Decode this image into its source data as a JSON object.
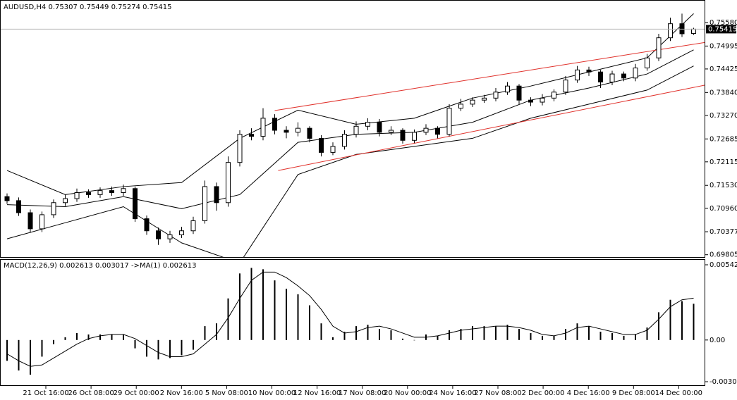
{
  "chart_data": [
    {
      "type": "candlestick",
      "title": "AUDUSD,H4",
      "ohlc": [
        [
          0.7125,
          0.7133,
          0.7107,
          0.7115
        ],
        [
          0.7115,
          0.7123,
          0.7077,
          0.7085
        ],
        [
          0.7085,
          0.7093,
          0.7035,
          0.7045
        ],
        [
          0.7045,
          0.7088,
          0.7037,
          0.708
        ],
        [
          0.708,
          0.7118,
          0.7072,
          0.711
        ],
        [
          0.711,
          0.713,
          0.7102,
          0.712
        ],
        [
          0.712,
          0.7145,
          0.7112,
          0.7135
        ],
        [
          0.7135,
          0.7143,
          0.7122,
          0.713
        ],
        [
          0.713,
          0.7148,
          0.7122,
          0.714
        ],
        [
          0.714,
          0.715,
          0.7127,
          0.7135
        ],
        [
          0.7135,
          0.7155,
          0.7127,
          0.7145
        ],
        [
          0.7145,
          0.715,
          0.7062,
          0.707
        ],
        [
          0.707,
          0.7078,
          0.703,
          0.704
        ],
        [
          0.704,
          0.7048,
          0.7005,
          0.702
        ],
        [
          0.702,
          0.704,
          0.701,
          0.703
        ],
        [
          0.703,
          0.705,
          0.7022,
          0.704
        ],
        [
          0.704,
          0.7075,
          0.7032,
          0.7065
        ],
        [
          0.7065,
          0.7165,
          0.7058,
          0.715
        ],
        [
          0.715,
          0.716,
          0.709,
          0.711
        ],
        [
          0.711,
          0.7225,
          0.71,
          0.721
        ],
        [
          0.721,
          0.729,
          0.72,
          0.728
        ],
        [
          0.728,
          0.7295,
          0.7265,
          0.7275
        ],
        [
          0.7275,
          0.7345,
          0.7265,
          0.732
        ],
        [
          0.732,
          0.733,
          0.728,
          0.729
        ],
        [
          0.729,
          0.73,
          0.727,
          0.7285
        ],
        [
          0.7285,
          0.731,
          0.7275,
          0.7295
        ],
        [
          0.7295,
          0.73,
          0.726,
          0.727
        ],
        [
          0.727,
          0.7278,
          0.7225,
          0.7235
        ],
        [
          0.7235,
          0.726,
          0.7228,
          0.725
        ],
        [
          0.725,
          0.729,
          0.7242,
          0.728
        ],
        [
          0.728,
          0.7312,
          0.7272,
          0.73
        ],
        [
          0.73,
          0.732,
          0.729,
          0.731
        ],
        [
          0.731,
          0.7318,
          0.7275,
          0.7285
        ],
        [
          0.7285,
          0.73,
          0.7278,
          0.729
        ],
        [
          0.729,
          0.7295,
          0.7257,
          0.7265
        ],
        [
          0.7265,
          0.7292,
          0.7258,
          0.7285
        ],
        [
          0.7285,
          0.7305,
          0.7278,
          0.7295
        ],
        [
          0.7295,
          0.73,
          0.727,
          0.728
        ],
        [
          0.728,
          0.7355,
          0.7275,
          0.7345
        ],
        [
          0.7345,
          0.7368,
          0.7338,
          0.7355
        ],
        [
          0.7355,
          0.7372,
          0.7348,
          0.7365
        ],
        [
          0.7365,
          0.7378,
          0.7358,
          0.737
        ],
        [
          0.737,
          0.7395,
          0.7362,
          0.7385
        ],
        [
          0.7385,
          0.741,
          0.7378,
          0.74
        ],
        [
          0.74,
          0.7405,
          0.7355,
          0.7365
        ],
        [
          0.7365,
          0.7372,
          0.735,
          0.736
        ],
        [
          0.736,
          0.738,
          0.7352,
          0.737
        ],
        [
          0.737,
          0.7392,
          0.7362,
          0.7385
        ],
        [
          0.7385,
          0.7425,
          0.7378,
          0.7415
        ],
        [
          0.7415,
          0.745,
          0.7408,
          0.744
        ],
        [
          0.744,
          0.7448,
          0.7425,
          0.7435
        ],
        [
          0.7435,
          0.744,
          0.7395,
          0.741
        ],
        [
          0.741,
          0.7438,
          0.7402,
          0.743
        ],
        [
          0.743,
          0.7436,
          0.7412,
          0.742
        ],
        [
          0.742,
          0.7455,
          0.7412,
          0.7445
        ],
        [
          0.7445,
          0.748,
          0.7438,
          0.747
        ],
        [
          0.747,
          0.753,
          0.7462,
          0.752
        ],
        [
          0.752,
          0.757,
          0.7512,
          0.7555
        ],
        [
          0.7555,
          0.758,
          0.7522,
          0.753
        ],
        [
          0.75307,
          0.75449,
          0.75274,
          0.75415
        ]
      ],
      "bands": {
        "x": [
          0,
          5,
          10,
          15,
          20,
          25,
          30,
          35,
          40,
          45,
          50,
          55,
          59
        ],
        "upper": [
          0.719,
          0.713,
          0.715,
          0.716,
          0.727,
          0.734,
          0.7305,
          0.732,
          0.737,
          0.74,
          0.7435,
          0.747,
          0.758
        ],
        "middle": [
          0.7105,
          0.71,
          0.7125,
          0.7095,
          0.713,
          0.726,
          0.728,
          0.7285,
          0.731,
          0.7365,
          0.7395,
          0.743,
          0.749
        ],
        "lower": [
          0.702,
          0.706,
          0.71,
          0.701,
          0.696,
          0.718,
          0.723,
          0.725,
          0.727,
          0.732,
          0.7355,
          0.739,
          0.745
        ],
        "color": "#000000"
      },
      "channels": [
        {
          "x": [
            23,
            62.7
          ],
          "y": [
            0.7339,
            0.7521
          ],
          "color": "#e0312b"
        },
        {
          "x": [
            23.3,
            62.7
          ],
          "y": [
            0.719,
            0.7418
          ],
          "color": "#e0312b"
        }
      ],
      "ylim": [
        0.6973,
        0.7614
      ],
      "yticks": [
        {
          "value": 0.7558,
          "label": "0.75580"
        },
        0.74995,
        {
          "value": 0.74425,
          "label": "0.74425"
        },
        {
          "value": 0.7384,
          "label": "0.73840"
        },
        {
          "value": 0.7327,
          "label": "0.73270"
        },
        0.72685,
        {
          "value": 0.72115,
          "label": "0.72115"
        },
        {
          "value": 0.7153,
          "label": "0.71530"
        },
        {
          "value": 0.7096,
          "label": "0.70960"
        },
        0.70377,
        0.69805
      ]
    },
    {
      "type": "macd",
      "title": "MACD(12,26,9)",
      "signal_title": "->MA(1)",
      "values": [
        -0.0015,
        -0.0022,
        -0.0025,
        -0.0012,
        -0.0003,
        0.0002,
        0.0005,
        0.0004,
        0.0004,
        0.0004,
        0.0004,
        -0.0006,
        -0.0012,
        -0.0014,
        -0.0013,
        -0.0011,
        -0.0007,
        0.001,
        0.0012,
        0.003,
        0.0048,
        0.0052,
        0.0051,
        0.0043,
        0.0037,
        0.0033,
        0.0025,
        0.0012,
        0.0002,
        0.0006,
        0.001,
        0.0011,
        0.0008,
        0.0007,
        0.0001,
        0.0,
        0.0004,
        0.0003,
        0.0007,
        0.0008,
        0.001,
        0.001,
        0.001,
        0.0011,
        0.0008,
        0.0005,
        0.0003,
        0.0003,
        0.0008,
        0.0012,
        0.001,
        0.0006,
        0.0005,
        0.0003,
        0.0004,
        0.0009,
        0.002,
        0.0029,
        0.0028,
        0.002613
      ],
      "signal": [
        -0.001,
        -0.0015,
        -0.0019,
        -0.0018,
        -0.0013,
        -0.0008,
        -0.0003,
        0.0001,
        0.0003,
        0.0004,
        0.0004,
        0.0001,
        -0.0004,
        -0.0009,
        -0.0012,
        -0.0012,
        -0.001,
        -0.0003,
        0.0004,
        0.0016,
        0.003,
        0.0043,
        0.0049,
        0.0049,
        0.0045,
        0.0039,
        0.0032,
        0.0022,
        0.001,
        0.0005,
        0.0006,
        0.0009,
        0.001,
        0.0008,
        0.0005,
        0.0002,
        0.0002,
        0.0003,
        0.0005,
        0.0007,
        0.0008,
        0.0009,
        0.001,
        0.001,
        0.0009,
        0.0007,
        0.0004,
        0.0003,
        0.0005,
        0.0009,
        0.001,
        0.0008,
        0.0006,
        0.0004,
        0.0004,
        0.0007,
        0.0015,
        0.0024,
        0.0029,
        0.003017
      ],
      "ylim": [
        -0.00326,
        0.00578
      ],
      "yticks": [
        0.005425,
        {
          "value": 0,
          "label": "0.00"
        },
        -0.003006
      ],
      "xlabels": [
        "21 Oct 16:00",
        "26 Oct 08:00",
        "29 Oct 00:00",
        "2 Nov 16:00",
        "5 Nov 08:00",
        "10 Nov 00:00",
        "12 Nov 16:00",
        "17 Nov 08:00",
        "20 Nov 00:00",
        "24 Nov 16:00",
        "27 Nov 08:00",
        "2 Dec 00:00",
        "4 Dec 16:00",
        "9 Dec 08:00",
        "14 Dec 00:00"
      ]
    }
  ]
}
